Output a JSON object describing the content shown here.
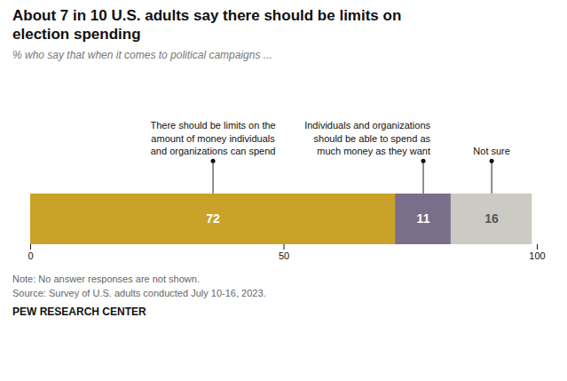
{
  "chart_data": {
    "type": "bar",
    "orientation": "horizontal",
    "stacked": true,
    "title": "About 7 in 10 U.S. adults say there should be limits on\nelection spending",
    "subtitle": "% who say that when it comes to political campaigns ...",
    "note": "Note: No answer responses are not shown.\nSource: Survey of U.S. adults conducted July 10-16, 2023.",
    "footer": "PEW RESEARCH CENTER",
    "series": [
      {
        "name": "There should be limits on the\namount of money individuals\nand organizations can spend",
        "color": "#C9A227",
        "values": [
          72
        ]
      },
      {
        "name": "Individuals and organizations\nshould be able to spend as\nmuch money as they want",
        "color": "#7B6E8B",
        "values": [
          11
        ]
      },
      {
        "name": "Not sure",
        "color": "#CBCAC3",
        "values": [
          16
        ]
      }
    ],
    "xlim": [
      0,
      100
    ],
    "xticks": [
      0,
      50,
      100
    ],
    "data_labels": true,
    "tick_labels": "x"
  }
}
